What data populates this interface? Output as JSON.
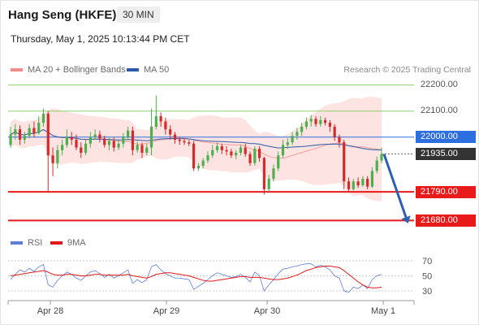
{
  "header": {
    "title": "Hang Seng (HKFE)",
    "timeframe": "30 MIN",
    "datetime": "Thursday, May 1, 2025 10:13:44 PM CET"
  },
  "legend": {
    "bollinger_label": "MA 20 + Bollinger Bands",
    "ma50_label": "MA 50",
    "copyright": "Research © 2025 Trading Central",
    "rsi_label": "RSI",
    "rsi_ma_label": "9MA"
  },
  "colors": {
    "bollinger": "#f28c8c",
    "band_fill": "#fde3e1",
    "ma50": "#2d5aa8",
    "candle_up": "#4caf50",
    "candle_down": "#d42a2a",
    "support": "#e81a1a",
    "resistance": "#8fcd6e",
    "pivot": "#2e6fe0",
    "current": "#333333",
    "rsi": "#5b7ed8",
    "rsi_ma": "#e01a1a"
  },
  "chart_data": {
    "type": "candlestick",
    "y_range": [
      21650,
      22230
    ],
    "x_labels": [
      "Apr 28",
      "Apr 29",
      "Apr 30",
      "May 1"
    ],
    "levels": [
      {
        "label": "22200.00",
        "value": 22200,
        "kind": "resistance"
      },
      {
        "label": "22100.00",
        "value": 22100,
        "kind": "resistance"
      },
      {
        "label": "22000.00",
        "value": 22000,
        "kind": "pivot"
      },
      {
        "label": "21935.00",
        "value": 21935,
        "kind": "current"
      },
      {
        "label": "21790.00",
        "value": 21790,
        "kind": "support"
      },
      {
        "label": "21680.00",
        "value": 21680,
        "kind": "support"
      }
    ],
    "forecast_path": [
      21935,
      21680
    ],
    "candles": [
      [
        21970,
        22010,
        21960,
        22040
      ],
      [
        22010,
        22030,
        21990,
        22050
      ],
      [
        22030,
        21990,
        21970,
        22045
      ],
      [
        21990,
        22005,
        21975,
        22020
      ],
      [
        22005,
        22035,
        21995,
        22050
      ],
      [
        22035,
        22015,
        22000,
        22060
      ],
      [
        22015,
        22055,
        22010,
        22080
      ],
      [
        22055,
        22090,
        22040,
        22110
      ],
      [
        22090,
        21930,
        21790,
        22100
      ],
      [
        21930,
        21900,
        21850,
        21960
      ],
      [
        21900,
        21950,
        21880,
        21970
      ],
      [
        21950,
        21970,
        21930,
        21990
      ],
      [
        21970,
        22000,
        21960,
        22030
      ],
      [
        22000,
        21990,
        21970,
        22020
      ],
      [
        21990,
        21960,
        21950,
        22010
      ],
      [
        21960,
        21940,
        21920,
        21980
      ],
      [
        21940,
        21975,
        21930,
        21990
      ],
      [
        21975,
        22000,
        21960,
        22020
      ],
      [
        22000,
        22010,
        21990,
        22030
      ],
      [
        22010,
        21995,
        21980,
        22025
      ],
      [
        21995,
        21970,
        21960,
        22005
      ],
      [
        21970,
        21985,
        21950,
        22000
      ],
      [
        21985,
        21960,
        21945,
        22000
      ],
      [
        21960,
        21975,
        21950,
        21990
      ],
      [
        21975,
        22000,
        21960,
        22015
      ],
      [
        22000,
        22025,
        21990,
        22040
      ],
      [
        22025,
        21950,
        21930,
        22040
      ],
      [
        21950,
        21970,
        21940,
        21985
      ],
      [
        21970,
        21940,
        21920,
        21980
      ],
      [
        21940,
        21960,
        21930,
        21975
      ],
      [
        21960,
        22040,
        21930,
        22110
      ],
      [
        22040,
        22080,
        22030,
        22160
      ],
      [
        22080,
        22060,
        22040,
        22095
      ],
      [
        22060,
        22030,
        22010,
        22075
      ],
      [
        22030,
        22010,
        21990,
        22045
      ],
      [
        22010,
        21990,
        21975,
        22020
      ],
      [
        21990,
        21985,
        21970,
        22000
      ],
      [
        21985,
        21980,
        21970,
        21995
      ],
      [
        21980,
        21975,
        21965,
        21990
      ],
      [
        21975,
        21880,
        21870,
        21985
      ],
      [
        21880,
        21890,
        21870,
        21900
      ],
      [
        21890,
        21910,
        21880,
        21920
      ],
      [
        21910,
        21930,
        21900,
        21945
      ],
      [
        21930,
        21950,
        21920,
        21970
      ],
      [
        21950,
        21965,
        21940,
        21980
      ],
      [
        21965,
        21950,
        21935,
        21975
      ],
      [
        21950,
        21945,
        21930,
        21965
      ],
      [
        21945,
        21930,
        21920,
        21955
      ],
      [
        21930,
        21940,
        21915,
        21950
      ],
      [
        21940,
        21960,
        21930,
        21970
      ],
      [
        21960,
        21935,
        21925,
        21975
      ],
      [
        21935,
        21900,
        21890,
        21945
      ],
      [
        21900,
        21955,
        21890,
        21965
      ],
      [
        21955,
        21920,
        21905,
        21965
      ],
      [
        21920,
        21800,
        21780,
        21925
      ],
      [
        21800,
        21840,
        21790,
        21855
      ],
      [
        21840,
        21880,
        21830,
        21895
      ],
      [
        21880,
        21930,
        21870,
        21945
      ],
      [
        21930,
        21970,
        21920,
        21990
      ],
      [
        21970,
        21980,
        21955,
        21995
      ],
      [
        21980,
        22005,
        21970,
        22020
      ],
      [
        22005,
        22020,
        21990,
        22035
      ],
      [
        22020,
        22040,
        22005,
        22055
      ],
      [
        22040,
        22060,
        22030,
        22075
      ],
      [
        22060,
        22070,
        22040,
        22085
      ],
      [
        22070,
        22050,
        22040,
        22080
      ],
      [
        22050,
        22065,
        22040,
        22080
      ],
      [
        22065,
        22055,
        22045,
        22075
      ],
      [
        22055,
        22040,
        22020,
        22065
      ],
      [
        22040,
        22000,
        21985,
        22050
      ],
      [
        22000,
        21980,
        21960,
        22010
      ],
      [
        21980,
        21830,
        21800,
        21990
      ],
      [
        21830,
        21800,
        21790,
        21845
      ],
      [
        21800,
        21830,
        21795,
        21840
      ],
      [
        21830,
        21815,
        21805,
        21845
      ],
      [
        21815,
        21840,
        21810,
        21850
      ],
      [
        21840,
        21810,
        21800,
        21850
      ],
      [
        21810,
        21870,
        21805,
        21885
      ],
      [
        21870,
        21910,
        21860,
        21925
      ],
      [
        21910,
        21935,
        21900,
        21960
      ]
    ],
    "rsi_axis": [
      70,
      50,
      30
    ],
    "rsi_values": [
      45,
      52,
      58,
      55,
      60,
      56,
      62,
      65,
      38,
      35,
      44,
      50,
      55,
      52,
      47,
      44,
      50,
      55,
      57,
      53,
      48,
      52,
      47,
      50,
      54,
      58,
      40,
      45,
      41,
      45,
      62,
      65,
      58,
      53,
      50,
      47,
      47,
      46,
      45,
      32,
      36,
      40,
      45,
      50,
      54,
      52,
      50,
      48,
      49,
      52,
      48,
      42,
      55,
      50,
      30,
      38,
      45,
      53,
      59,
      60,
      62,
      63,
      65,
      66,
      66,
      62,
      64,
      62,
      58,
      50,
      47,
      30,
      28,
      35,
      33,
      38,
      33,
      45,
      50,
      52
    ],
    "rsi_ma_values": [
      50,
      51,
      52,
      53,
      54,
      55,
      56,
      57,
      55,
      52,
      51,
      51,
      52,
      52,
      51,
      50,
      50,
      51,
      52,
      52,
      51,
      51,
      51,
      51,
      51,
      52,
      50,
      49,
      48,
      47,
      49,
      52,
      53,
      54,
      54,
      53,
      52,
      51,
      50,
      48,
      46,
      44,
      43,
      43,
      44,
      45,
      46,
      47,
      48,
      49,
      49,
      48,
      48,
      48,
      47,
      46,
      45,
      45,
      46,
      47,
      49,
      51,
      54,
      57,
      59,
      61,
      62,
      63,
      63,
      62,
      61,
      57,
      52,
      47,
      42,
      38,
      35,
      34,
      34,
      35
    ]
  }
}
